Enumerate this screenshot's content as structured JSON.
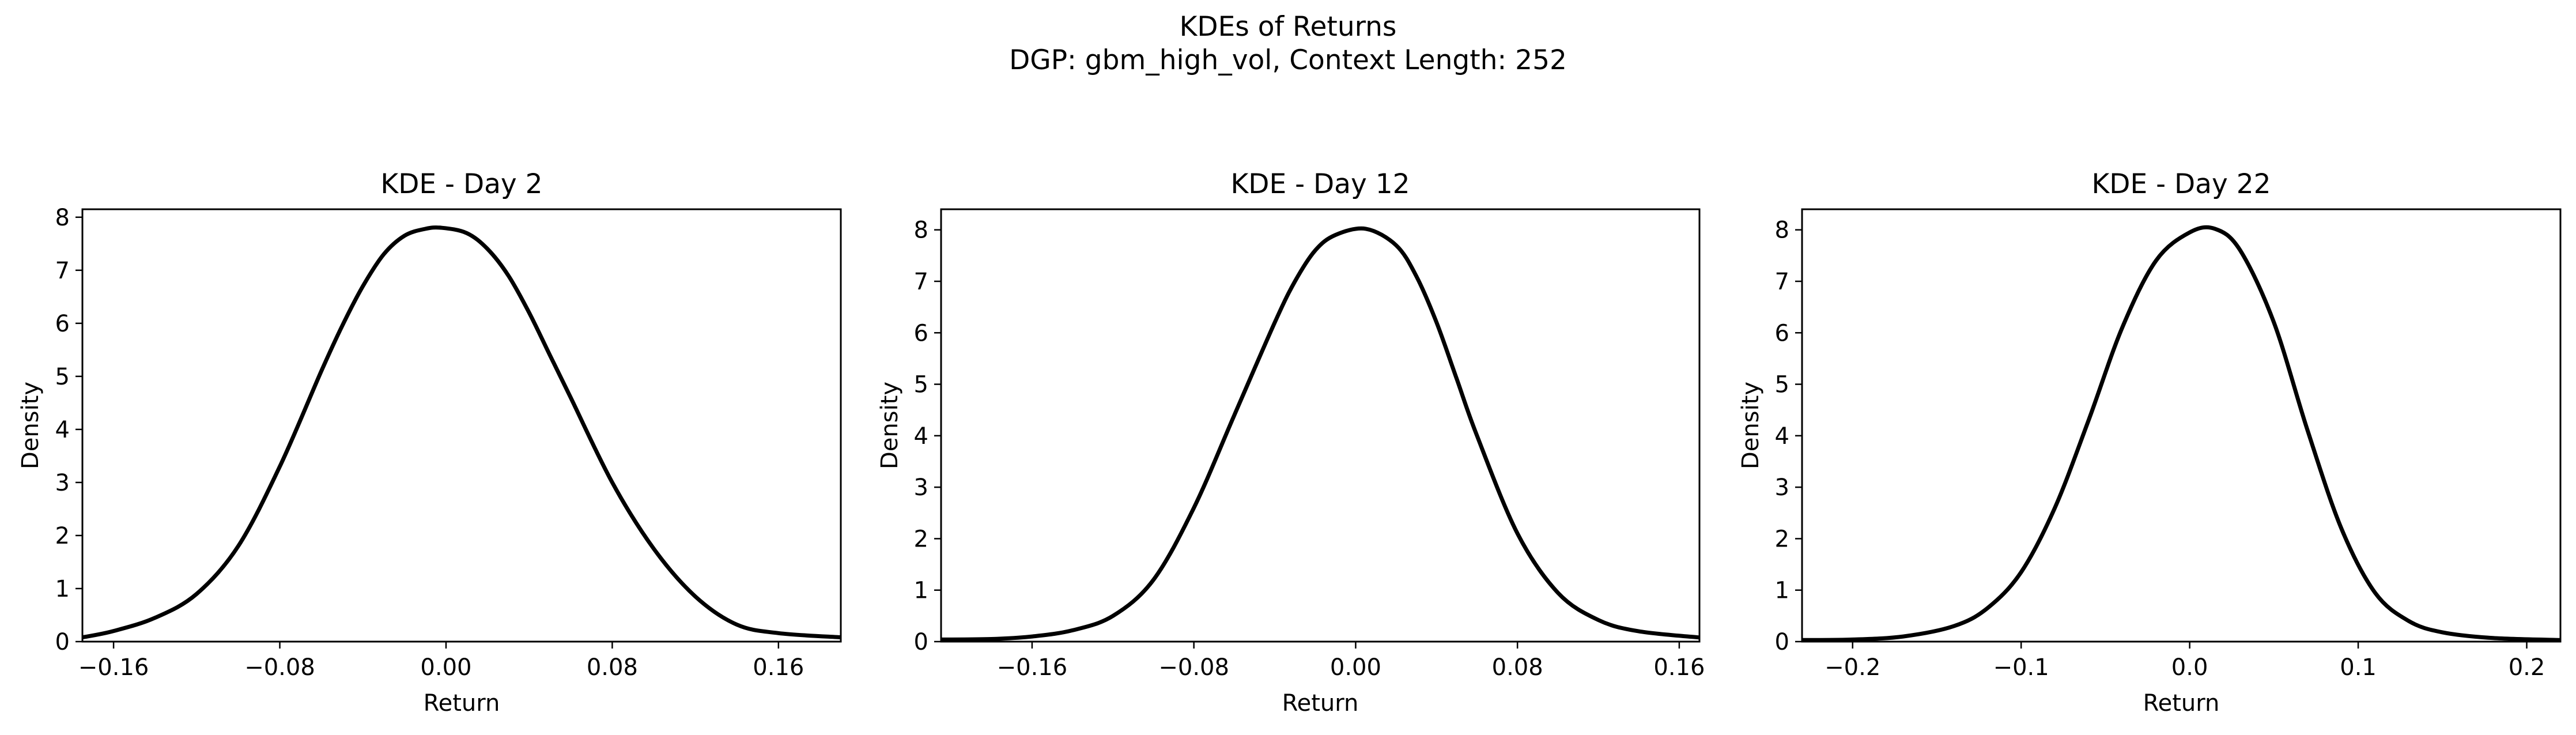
{
  "figure": {
    "suptitle_line1": "KDEs of Returns",
    "suptitle_line2": "DGP: gbm_high_vol, Context Length: 252"
  },
  "chart_data": [
    {
      "type": "line",
      "title": "KDE - Day 2",
      "xlabel": "Return",
      "ylabel": "Density",
      "xlim": [
        -0.175,
        0.19
      ],
      "ylim": [
        0,
        8.15
      ],
      "xticks": [
        -0.16,
        -0.08,
        0.0,
        0.08,
        0.16
      ],
      "xtick_labels": [
        "−0.16",
        "−0.08",
        "0.00",
        "0.08",
        "0.16"
      ],
      "yticks": [
        0,
        1,
        2,
        3,
        4,
        5,
        6,
        7,
        8
      ],
      "ytick_labels": [
        "0",
        "1",
        "2",
        "3",
        "4",
        "5",
        "6",
        "7",
        "8"
      ],
      "line_color": "#000000",
      "series": [
        {
          "x": [
            -0.175,
            -0.16,
            -0.14,
            -0.12,
            -0.1,
            -0.08,
            -0.06,
            -0.05,
            -0.04,
            -0.03,
            -0.02,
            -0.01,
            -0.002,
            0.01,
            0.02,
            0.03,
            0.04,
            0.05,
            0.06,
            0.08,
            0.1,
            0.12,
            0.14,
            0.16,
            0.19
          ],
          "y": [
            0.08,
            0.2,
            0.45,
            0.9,
            1.8,
            3.3,
            5.1,
            5.95,
            6.7,
            7.3,
            7.65,
            7.78,
            7.8,
            7.7,
            7.4,
            6.9,
            6.2,
            5.4,
            4.6,
            3.0,
            1.75,
            0.85,
            0.32,
            0.16,
            0.08
          ]
        }
      ]
    },
    {
      "type": "line",
      "title": "KDE - Day 12",
      "xlabel": "Return",
      "ylabel": "Density",
      "xlim": [
        -0.205,
        0.17
      ],
      "ylim": [
        0,
        8.4
      ],
      "xticks": [
        -0.16,
        -0.08,
        0.0,
        0.08,
        0.16
      ],
      "xtick_labels": [
        "−0.16",
        "−0.08",
        "0.00",
        "0.08",
        "0.16"
      ],
      "yticks": [
        0,
        1,
        2,
        3,
        4,
        5,
        6,
        7,
        8
      ],
      "ytick_labels": [
        "0",
        "1",
        "2",
        "3",
        "4",
        "5",
        "6",
        "7",
        "8"
      ],
      "line_color": "#000000",
      "series": [
        {
          "x": [
            -0.205,
            -0.18,
            -0.16,
            -0.14,
            -0.12,
            -0.1,
            -0.08,
            -0.06,
            -0.04,
            -0.03,
            -0.02,
            -0.01,
            0.005,
            0.02,
            0.03,
            0.04,
            0.05,
            0.06,
            0.08,
            0.1,
            0.12,
            0.14,
            0.17
          ],
          "y": [
            0.04,
            0.05,
            0.1,
            0.22,
            0.5,
            1.2,
            2.6,
            4.4,
            6.2,
            7.0,
            7.6,
            7.9,
            8.02,
            7.7,
            7.1,
            6.2,
            5.1,
            4.0,
            2.1,
            0.95,
            0.42,
            0.2,
            0.08
          ]
        }
      ]
    },
    {
      "type": "line",
      "title": "KDE - Day 22",
      "xlabel": "Return",
      "ylabel": "Density",
      "xlim": [
        -0.23,
        0.22
      ],
      "ylim": [
        0,
        8.4
      ],
      "xticks": [
        -0.2,
        -0.1,
        0.0,
        0.1,
        0.2
      ],
      "xtick_labels": [
        "−0.2",
        "−0.1",
        "0.0",
        "0.1",
        "0.2"
      ],
      "yticks": [
        0,
        1,
        2,
        3,
        4,
        5,
        6,
        7,
        8
      ],
      "ytick_labels": [
        "0",
        "1",
        "2",
        "3",
        "4",
        "5",
        "6",
        "7",
        "8"
      ],
      "line_color": "#000000",
      "series": [
        {
          "x": [
            -0.23,
            -0.2,
            -0.17,
            -0.14,
            -0.12,
            -0.1,
            -0.08,
            -0.06,
            -0.04,
            -0.02,
            0.0,
            0.015,
            0.03,
            0.05,
            0.07,
            0.09,
            0.11,
            0.13,
            0.15,
            0.18,
            0.22
          ],
          "y": [
            0.03,
            0.04,
            0.1,
            0.3,
            0.65,
            1.35,
            2.6,
            4.3,
            6.1,
            7.4,
            7.95,
            8.02,
            7.6,
            6.2,
            4.1,
            2.2,
            0.95,
            0.4,
            0.18,
            0.07,
            0.03
          ]
        }
      ]
    }
  ]
}
